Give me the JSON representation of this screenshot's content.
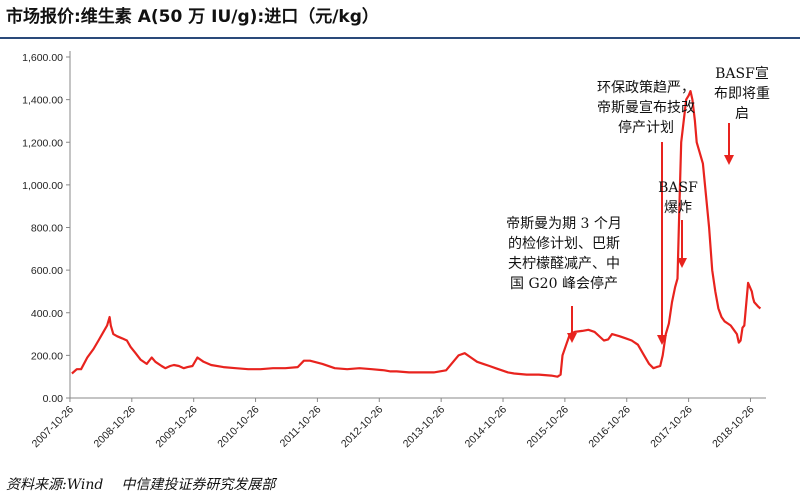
{
  "title": "市场报价:维生素 A(50 万 IU/g):进口（元/kg）",
  "source": {
    "label": "资料来源:",
    "name": "Wind",
    "org": "中信建投证券研究发展部"
  },
  "colors": {
    "line": "#e8231e",
    "axis": "#888888",
    "text": "#222222",
    "rule": "#2a4a7a"
  },
  "chart_data": {
    "type": "line",
    "title": "市场报价:维生素 A(50 万 IU/g):进口（元/kg）",
    "xlabel": "",
    "ylabel": "",
    "ylim": [
      0,
      1600
    ],
    "yticks": [
      "0.00",
      "200.00",
      "400.00",
      "600.00",
      "800.00",
      "1,000.00",
      "1,200.00",
      "1,400.00",
      "1,600.00"
    ],
    "xticks": [
      "2007-10-26",
      "2008-10-26",
      "2009-10-26",
      "2010-10-26",
      "2011-10-26",
      "2012-10-26",
      "2013-10-26",
      "2014-10-26",
      "2015-10-26",
      "2016-10-26",
      "2017-10-26",
      "2018-10-26"
    ],
    "grid": false,
    "legend": "none",
    "series": [
      {
        "x": [
          2007.85,
          2007.93,
          2008.0,
          2008.1,
          2008.2,
          2008.28,
          2008.36,
          2008.42,
          2008.46,
          2008.48,
          2008.52,
          2008.58,
          2008.66,
          2008.74,
          2008.8,
          2008.88,
          2008.96,
          2009.06,
          2009.14,
          2009.2,
          2009.3,
          2009.36,
          2009.44,
          2009.5,
          2009.58,
          2009.66,
          2009.72,
          2009.8,
          2009.88,
          2009.98,
          2010.1,
          2010.3,
          2010.5,
          2010.7,
          2010.9,
          2011.1,
          2011.3,
          2011.5,
          2011.6,
          2011.7,
          2011.9,
          2012.1,
          2012.3,
          2012.5,
          2012.7,
          2012.9,
          2013.0,
          2013.1,
          2013.3,
          2013.5,
          2013.7,
          2013.9,
          2014.1,
          2014.2,
          2014.3,
          2014.4,
          2014.5,
          2014.6,
          2014.7,
          2014.8,
          2014.9,
          2015.0,
          2015.2,
          2015.4,
          2015.6,
          2015.7,
          2015.75,
          2015.78,
          2015.84,
          2015.9,
          2015.98,
          2016.1,
          2016.2,
          2016.3,
          2016.45,
          2016.52,
          2016.58,
          2016.7,
          2016.8,
          2016.9,
          2017.0,
          2017.1,
          2017.18,
          2017.25,
          2017.3,
          2017.36,
          2017.4,
          2017.45,
          2017.5,
          2017.55,
          2017.6,
          2017.64,
          2017.67,
          2017.7,
          2017.74,
          2017.78,
          2017.82,
          2017.85,
          2017.88,
          2017.92,
          2017.95,
          2018.0,
          2018.05,
          2018.1,
          2018.15,
          2018.2,
          2018.25,
          2018.3,
          2018.35,
          2018.4,
          2018.45,
          2018.5,
          2018.55,
          2018.6,
          2018.63,
          2018.66,
          2018.69,
          2018.72,
          2018.78,
          2018.84,
          2018.86,
          2018.88,
          2018.94,
          2018.98
        ],
        "y": [
          115,
          135,
          135,
          190,
          230,
          270,
          310,
          340,
          380,
          340,
          300,
          290,
          280,
          270,
          240,
          210,
          180,
          160,
          190,
          170,
          150,
          140,
          150,
          155,
          150,
          140,
          145,
          150,
          190,
          170,
          155,
          145,
          140,
          135,
          135,
          140,
          140,
          145,
          175,
          175,
          160,
          140,
          135,
          140,
          135,
          130,
          125,
          125,
          120,
          120,
          120,
          130,
          200,
          210,
          190,
          170,
          160,
          150,
          140,
          130,
          120,
          115,
          110,
          110,
          105,
          100,
          110,
          200,
          250,
          300,
          310,
          315,
          320,
          310,
          270,
          275,
          300,
          290,
          280,
          270,
          250,
          200,
          160,
          140,
          145,
          150,
          200,
          300,
          350,
          450,
          520,
          560,
          900,
          1200,
          1300,
          1400,
          1420,
          1440,
          1400,
          1300,
          1200,
          1150,
          1100,
          950,
          800,
          600,
          500,
          420,
          380,
          360,
          350,
          340,
          320,
          300,
          260,
          270,
          330,
          340,
          540,
          500,
          470,
          450,
          430,
          420
        ]
      }
    ],
    "annotations": [
      {
        "text": [
          "帝斯曼为期 3 个月",
          "的检修计划、巴斯",
          "夫柠檬醛减产、中",
          "国 G20 峰会停产"
        ]
      },
      {
        "text": [
          "环保政策趋严，",
          "帝斯曼宣布技改",
          "停产计划"
        ]
      },
      {
        "text": [
          "BASF",
          "爆炸"
        ]
      },
      {
        "text": [
          "BASF宣",
          "布即将重",
          "启"
        ]
      }
    ]
  }
}
